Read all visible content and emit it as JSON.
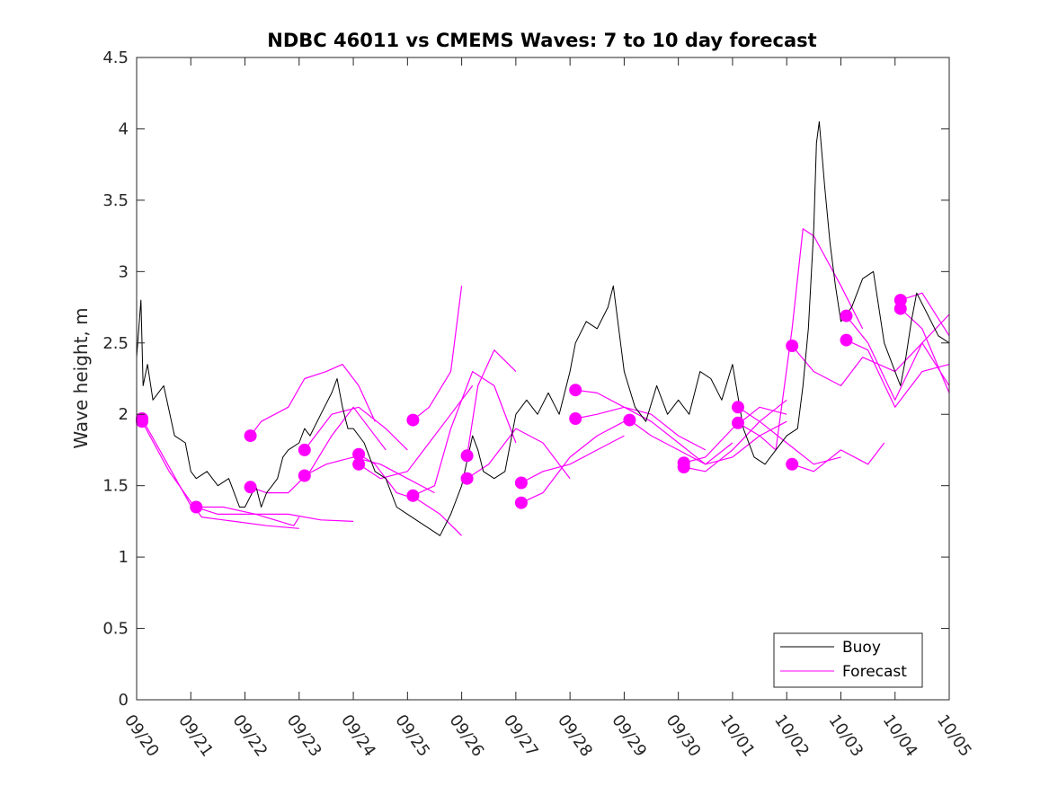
{
  "chart_data": {
    "type": "line",
    "title": "NDBC 46011 vs CMEMS Waves: 7 to 10 day forecast",
    "xlabel": "",
    "ylabel": "Wave height, m",
    "xlim_days": [
      0,
      15
    ],
    "ylim": [
      0,
      4.5
    ],
    "yticks": [
      "0",
      "0.5",
      "1",
      "1.5",
      "2",
      "2.5",
      "3",
      "3.5",
      "4",
      "4.5"
    ],
    "xticks": [
      "09/20",
      "09/21",
      "09/22",
      "09/23",
      "09/24",
      "09/25",
      "09/26",
      "09/27",
      "09/28",
      "09/29",
      "09/30",
      "10/01",
      "10/02",
      "10/03",
      "10/04",
      "10/05"
    ],
    "grid": false,
    "legend_position": "bottom-right",
    "legend": [
      "Buoy",
      "Forecast"
    ],
    "colors": {
      "buoy": "#000000",
      "forecast": "#ff00ff",
      "axis": "#262626"
    },
    "buoy_series": {
      "name": "Buoy",
      "x": [
        0,
        0.08,
        0.12,
        0.2,
        0.3,
        0.5,
        0.7,
        0.9,
        1.0,
        1.1,
        1.3,
        1.5,
        1.7,
        1.8,
        1.9,
        2.0,
        2.2,
        2.3,
        2.4,
        2.5,
        2.6,
        2.7,
        2.8,
        3.0,
        3.1,
        3.2,
        3.4,
        3.6,
        3.7,
        3.8,
        3.9,
        4.0,
        4.2,
        4.4,
        4.6,
        4.8,
        5.0,
        5.2,
        5.4,
        5.6,
        5.8,
        6.0,
        6.2,
        6.3,
        6.4,
        6.6,
        6.8,
        7.0,
        7.2,
        7.4,
        7.6,
        7.8,
        8.0,
        8.1,
        8.3,
        8.5,
        8.7,
        8.8,
        9.0,
        9.2,
        9.4,
        9.6,
        9.8,
        10.0,
        10.2,
        10.4,
        10.6,
        10.8,
        11.0,
        11.2,
        11.4,
        11.6,
        11.8,
        12.0,
        12.2,
        12.3,
        12.4,
        12.5,
        12.55,
        12.6,
        12.7,
        12.8,
        12.9,
        13.0,
        13.2,
        13.4,
        13.6,
        13.8,
        14.0,
        14.1,
        14.2,
        14.3,
        14.4,
        14.6,
        14.8,
        15.0
      ],
      "y": [
        2.4,
        2.8,
        2.2,
        2.35,
        2.1,
        2.2,
        1.85,
        1.8,
        1.6,
        1.55,
        1.6,
        1.5,
        1.55,
        1.45,
        1.35,
        1.35,
        1.5,
        1.35,
        1.45,
        1.5,
        1.55,
        1.7,
        1.75,
        1.8,
        1.9,
        1.85,
        2.0,
        2.15,
        2.25,
        2.05,
        1.9,
        1.9,
        1.8,
        1.6,
        1.55,
        1.35,
        1.3,
        1.25,
        1.2,
        1.15,
        1.3,
        1.5,
        1.85,
        1.75,
        1.6,
        1.55,
        1.6,
        2.0,
        2.1,
        2.0,
        2.15,
        2.0,
        2.3,
        2.5,
        2.65,
        2.6,
        2.75,
        2.9,
        2.3,
        2.05,
        1.95,
        2.2,
        2.0,
        2.1,
        2.0,
        2.3,
        2.25,
        2.1,
        2.35,
        1.9,
        1.7,
        1.65,
        1.75,
        1.85,
        1.9,
        2.2,
        2.6,
        3.3,
        3.9,
        4.05,
        3.6,
        3.2,
        2.9,
        2.65,
        2.75,
        2.95,
        3.0,
        2.5,
        2.3,
        2.2,
        2.4,
        2.65,
        2.85,
        2.7,
        2.55,
        2.5
      ]
    },
    "forecast_series": [
      {
        "name": "Forecast",
        "x": [
          0.1,
          0.6,
          1.2,
          1.8,
          2.4,
          3.0
        ],
        "y": [
          1.95,
          1.6,
          1.28,
          1.25,
          1.22,
          1.2
        ]
      },
      {
        "name": "Forecast",
        "x": [
          0.1,
          0.5,
          1.0,
          1.5,
          2.2,
          2.9,
          3.0
        ],
        "y": [
          1.97,
          1.7,
          1.36,
          1.3,
          1.3,
          1.22,
          1.28
        ]
      },
      {
        "name": "Forecast",
        "x": [
          1.1,
          1.6,
          2.2,
          2.8,
          3.4,
          4.0
        ],
        "y": [
          1.35,
          1.35,
          1.3,
          1.3,
          1.26,
          1.25
        ]
      },
      {
        "name": "Forecast",
        "x": [
          2.1,
          2.3,
          2.8,
          3.1,
          3.5,
          3.8,
          4.1,
          4.4
        ],
        "y": [
          1.85,
          1.95,
          2.05,
          2.25,
          2.3,
          2.35,
          2.2,
          1.95
        ]
      },
      {
        "name": "Forecast",
        "x": [
          2.1,
          2.4,
          2.8,
          3.2,
          3.6,
          4.0,
          4.2,
          4.6
        ],
        "y": [
          1.49,
          1.45,
          1.45,
          1.6,
          1.85,
          2.05,
          1.95,
          1.75
        ]
      },
      {
        "name": "Forecast",
        "x": [
          3.1,
          3.6,
          4.1,
          4.6,
          5.0
        ],
        "y": [
          1.75,
          2.0,
          2.05,
          1.9,
          1.75
        ]
      },
      {
        "name": "Forecast",
        "x": [
          3.1,
          3.5,
          4.0,
          4.5,
          5.0,
          5.5
        ],
        "y": [
          1.57,
          1.65,
          1.7,
          1.65,
          1.55,
          1.45
        ]
      },
      {
        "name": "Forecast",
        "x": [
          4.1,
          4.4,
          4.8,
          5.2,
          5.6,
          6.0
        ],
        "y": [
          1.72,
          1.65,
          1.45,
          1.4,
          1.3,
          1.15
        ]
      },
      {
        "name": "Forecast",
        "x": [
          4.1,
          4.5,
          5.0,
          5.4,
          5.8,
          6.2
        ],
        "y": [
          1.65,
          1.55,
          1.6,
          1.8,
          2.0,
          2.2
        ]
      },
      {
        "name": "Forecast",
        "x": [
          5.1,
          5.4,
          5.8,
          6.0
        ],
        "y": [
          1.96,
          2.05,
          2.3,
          2.9
        ]
      },
      {
        "name": "Forecast",
        "x": [
          5.1,
          5.5,
          5.8,
          6.2,
          6.6,
          7.0
        ],
        "y": [
          1.43,
          1.5,
          1.9,
          2.3,
          2.2,
          1.8
        ]
      },
      {
        "name": "Forecast",
        "x": [
          6.1,
          6.5,
          7.0,
          7.5,
          8.0
        ],
        "y": [
          1.55,
          1.65,
          1.9,
          1.8,
          1.55
        ]
      },
      {
        "name": "Forecast",
        "x": [
          6.1,
          6.3,
          6.6,
          7.0
        ],
        "y": [
          1.71,
          2.2,
          2.45,
          2.3
        ]
      },
      {
        "name": "Forecast",
        "x": [
          7.1,
          7.5,
          8.0,
          8.5,
          9.0
        ],
        "y": [
          1.38,
          1.45,
          1.7,
          1.85,
          1.95
        ]
      },
      {
        "name": "Forecast",
        "x": [
          7.1,
          7.5,
          8.0,
          8.5,
          9.0
        ],
        "y": [
          1.52,
          1.6,
          1.65,
          1.75,
          1.85
        ]
      },
      {
        "name": "Forecast",
        "x": [
          8.1,
          8.5,
          9.0,
          9.5,
          10.0,
          10.5,
          11.0
        ],
        "y": [
          2.17,
          2.15,
          2.05,
          1.95,
          1.8,
          1.65,
          1.8
        ]
      },
      {
        "name": "Forecast",
        "x": [
          8.1,
          8.5,
          9.0,
          9.5,
          10.0,
          10.5
        ],
        "y": [
          1.97,
          2.0,
          2.05,
          2.0,
          1.85,
          1.75
        ]
      },
      {
        "name": "Forecast",
        "x": [
          9.1,
          9.5,
          10.0,
          10.5,
          11.0,
          11.5,
          12.0
        ],
        "y": [
          1.96,
          1.85,
          1.75,
          1.65,
          1.7,
          1.85,
          1.95
        ]
      },
      {
        "name": "Forecast",
        "x": [
          10.1,
          10.5,
          11.0,
          11.5,
          12.0
        ],
        "y": [
          1.63,
          1.6,
          1.75,
          1.95,
          2.1
        ]
      },
      {
        "name": "Forecast",
        "x": [
          10.1,
          10.5,
          11.0,
          11.5,
          12.0
        ],
        "y": [
          1.66,
          1.7,
          1.9,
          2.05,
          2.0
        ]
      },
      {
        "name": "Forecast",
        "x": [
          11.1,
          11.5,
          12.0,
          12.5,
          13.0
        ],
        "y": [
          2.05,
          1.95,
          1.8,
          1.65,
          1.7
        ]
      },
      {
        "name": "Forecast",
        "x": [
          11.1,
          11.5,
          11.8,
          12.1,
          12.3,
          12.5,
          13.0,
          13.4
        ],
        "y": [
          1.94,
          1.85,
          1.75,
          2.6,
          3.3,
          3.25,
          2.9,
          2.6
        ]
      },
      {
        "name": "Forecast",
        "x": [
          12.1,
          12.5,
          13.0,
          13.5,
          13.8
        ],
        "y": [
          1.65,
          1.6,
          1.75,
          1.65,
          1.8
        ]
      },
      {
        "name": "Forecast",
        "x": [
          12.1,
          12.5,
          13.0,
          13.4,
          14.0,
          14.5,
          15.0
        ],
        "y": [
          2.48,
          2.3,
          2.2,
          2.4,
          2.3,
          2.5,
          2.2
        ]
      },
      {
        "name": "Forecast",
        "x": [
          13.1,
          13.5,
          14.0,
          14.5,
          15.0
        ],
        "y": [
          2.69,
          2.5,
          2.1,
          2.5,
          2.7
        ]
      },
      {
        "name": "Forecast",
        "x": [
          13.1,
          13.5,
          14.0,
          14.5,
          15.0
        ],
        "y": [
          2.52,
          2.45,
          2.05,
          2.3,
          2.35
        ]
      },
      {
        "name": "Forecast",
        "x": [
          14.1,
          14.5,
          15.0
        ],
        "y": [
          2.8,
          2.85,
          2.55
        ]
      },
      {
        "name": "Forecast",
        "x": [
          14.1,
          14.5,
          15.0
        ],
        "y": [
          2.74,
          2.6,
          2.15
        ]
      }
    ],
    "forecast_markers": {
      "x": [
        0.1,
        0.1,
        1.1,
        2.1,
        2.1,
        3.1,
        3.1,
        4.1,
        4.1,
        5.1,
        5.1,
        6.1,
        6.1,
        7.1,
        7.1,
        8.1,
        8.1,
        9.1,
        10.1,
        10.1,
        11.1,
        11.1,
        12.1,
        12.1,
        13.1,
        13.1,
        14.1,
        14.1
      ],
      "y": [
        1.97,
        1.95,
        1.35,
        1.85,
        1.49,
        1.75,
        1.57,
        1.72,
        1.65,
        1.96,
        1.43,
        1.55,
        1.71,
        1.38,
        1.52,
        2.17,
        1.97,
        1.96,
        1.63,
        1.66,
        2.05,
        1.94,
        2.48,
        1.65,
        2.69,
        2.52,
        2.8,
        2.74
      ]
    }
  }
}
